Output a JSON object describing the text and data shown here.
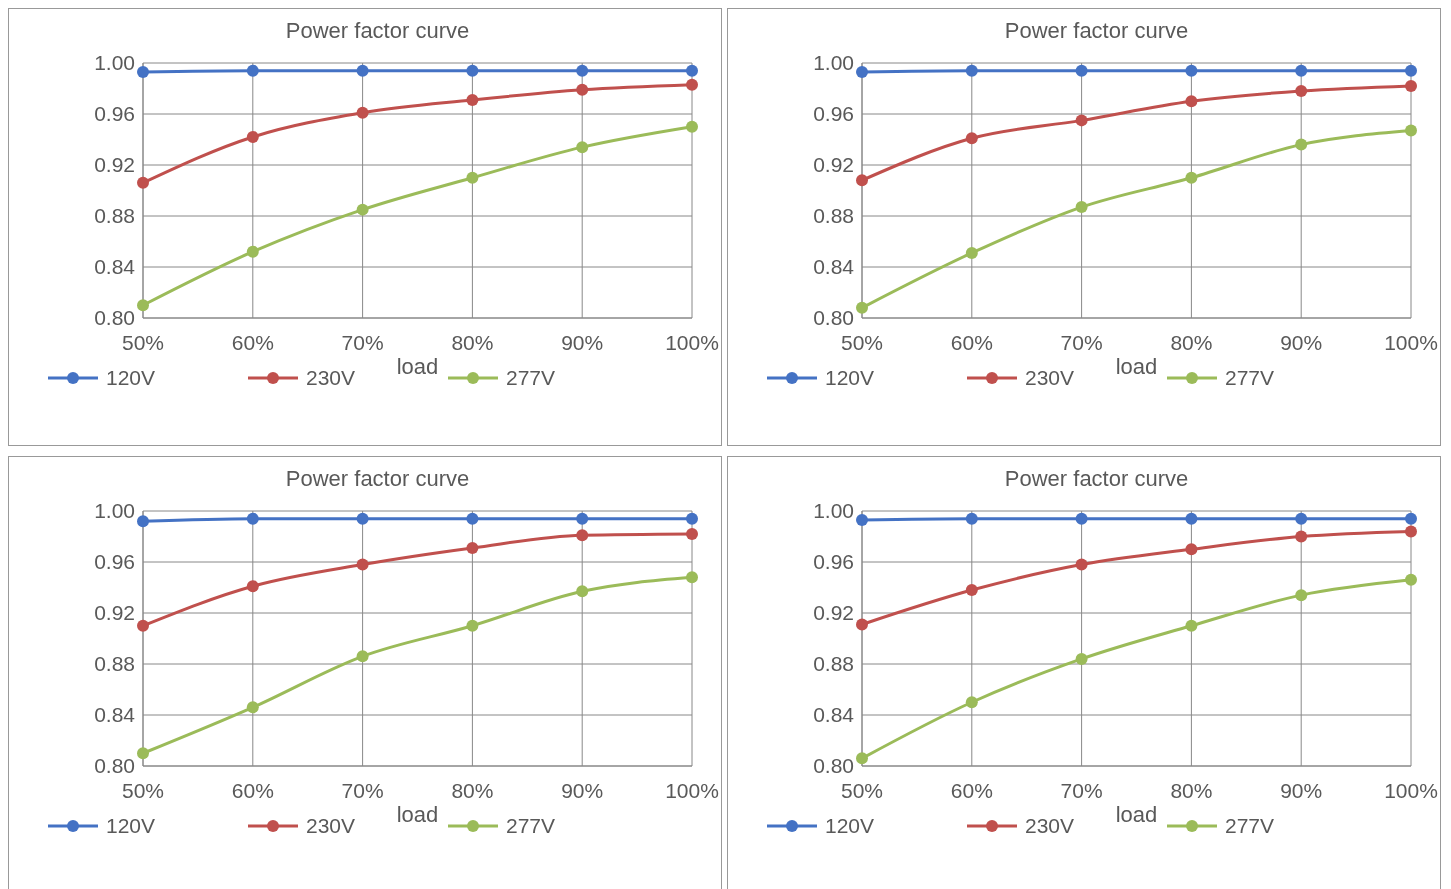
{
  "chart_data": [
    {
      "type": "line",
      "title": "Power factor curve",
      "xlabel": "load",
      "categories": [
        "50%",
        "60%",
        "70%",
        "80%",
        "90%",
        "100%"
      ],
      "ylim": [
        0.8,
        1.0
      ],
      "yticks": [
        {
          "value": 0.8,
          "label": "0.80"
        },
        {
          "value": 0.84,
          "label": "0.84"
        },
        {
          "value": 0.88,
          "label": "0.88"
        },
        {
          "value": 0.92,
          "label": "0.92"
        },
        {
          "value": 0.96,
          "label": "0.96"
        },
        {
          "value": 1.0,
          "label": "1.00"
        }
      ],
      "grid": true,
      "legend": "bottom",
      "marker": "circle",
      "line_style": "solid",
      "series": [
        {
          "name": "120V",
          "color": "#4472c4",
          "values": [
            0.993,
            0.994,
            0.994,
            0.994,
            0.994,
            0.994
          ]
        },
        {
          "name": "230V",
          "color": "#c0504d",
          "values": [
            0.906,
            0.942,
            0.961,
            0.971,
            0.979,
            0.983
          ]
        },
        {
          "name": "277V",
          "color": "#9bbb59",
          "values": [
            0.81,
            0.852,
            0.885,
            0.91,
            0.934,
            0.95
          ]
        }
      ]
    },
    {
      "type": "line",
      "title": "Power factor curve",
      "xlabel": "load",
      "categories": [
        "50%",
        "60%",
        "70%",
        "80%",
        "90%",
        "100%"
      ],
      "ylim": [
        0.8,
        1.0
      ],
      "yticks": [
        {
          "value": 0.8,
          "label": "0.80"
        },
        {
          "value": 0.84,
          "label": "0.84"
        },
        {
          "value": 0.88,
          "label": "0.88"
        },
        {
          "value": 0.92,
          "label": "0.92"
        },
        {
          "value": 0.96,
          "label": "0.96"
        },
        {
          "value": 1.0,
          "label": "1.00"
        }
      ],
      "grid": true,
      "legend": "bottom",
      "marker": "circle",
      "line_style": "solid",
      "series": [
        {
          "name": "120V",
          "color": "#4472c4",
          "values": [
            0.993,
            0.994,
            0.994,
            0.994,
            0.994,
            0.994
          ]
        },
        {
          "name": "230V",
          "color": "#c0504d",
          "values": [
            0.908,
            0.941,
            0.955,
            0.97,
            0.978,
            0.982
          ]
        },
        {
          "name": "277V",
          "color": "#9bbb59",
          "values": [
            0.808,
            0.851,
            0.887,
            0.91,
            0.936,
            0.947
          ]
        }
      ]
    },
    {
      "type": "line",
      "title": "Power factor curve",
      "xlabel": "load",
      "categories": [
        "50%",
        "60%",
        "70%",
        "80%",
        "90%",
        "100%"
      ],
      "ylim": [
        0.8,
        1.0
      ],
      "yticks": [
        {
          "value": 0.8,
          "label": "0.80"
        },
        {
          "value": 0.84,
          "label": "0.84"
        },
        {
          "value": 0.88,
          "label": "0.88"
        },
        {
          "value": 0.92,
          "label": "0.92"
        },
        {
          "value": 0.96,
          "label": "0.96"
        },
        {
          "value": 1.0,
          "label": "1.00"
        }
      ],
      "grid": true,
      "legend": "bottom",
      "marker": "circle",
      "line_style": "solid",
      "series": [
        {
          "name": "120V",
          "color": "#4472c4",
          "values": [
            0.992,
            0.994,
            0.994,
            0.994,
            0.994,
            0.994
          ]
        },
        {
          "name": "230V",
          "color": "#c0504d",
          "values": [
            0.91,
            0.941,
            0.958,
            0.971,
            0.981,
            0.982
          ]
        },
        {
          "name": "277V",
          "color": "#9bbb59",
          "values": [
            0.81,
            0.846,
            0.886,
            0.91,
            0.937,
            0.948
          ]
        }
      ]
    },
    {
      "type": "line",
      "title": "Power factor curve",
      "xlabel": "load",
      "categories": [
        "50%",
        "60%",
        "70%",
        "80%",
        "90%",
        "100%"
      ],
      "ylim": [
        0.8,
        1.0
      ],
      "yticks": [
        {
          "value": 0.8,
          "label": "0.80"
        },
        {
          "value": 0.84,
          "label": "0.84"
        },
        {
          "value": 0.88,
          "label": "0.88"
        },
        {
          "value": 0.92,
          "label": "0.92"
        },
        {
          "value": 0.96,
          "label": "0.96"
        },
        {
          "value": 1.0,
          "label": "1.00"
        }
      ],
      "grid": true,
      "legend": "bottom",
      "marker": "circle",
      "line_style": "solid",
      "series": [
        {
          "name": "120V",
          "color": "#4472c4",
          "values": [
            0.993,
            0.994,
            0.994,
            0.994,
            0.994,
            0.994
          ]
        },
        {
          "name": "230V",
          "color": "#c0504d",
          "values": [
            0.911,
            0.938,
            0.958,
            0.97,
            0.98,
            0.984
          ]
        },
        {
          "name": "277V",
          "color": "#9bbb59",
          "values": [
            0.806,
            0.85,
            0.884,
            0.91,
            0.934,
            0.946
          ]
        }
      ]
    }
  ]
}
